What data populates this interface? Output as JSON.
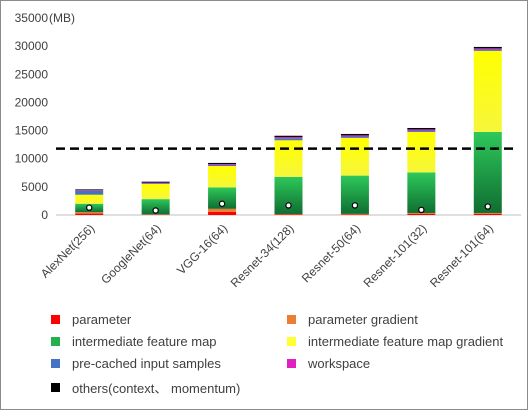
{
  "chart_data": {
    "type": "bar",
    "stacked": true,
    "unit_label": "(MB)",
    "ylim": [
      0,
      35000
    ],
    "yticks": [
      0,
      5000,
      10000,
      15000,
      20000,
      25000,
      30000,
      35000
    ],
    "ytick_labels": [
      "0",
      "5000",
      "10000",
      "15000",
      "20000",
      "25000",
      "30000",
      "35000"
    ],
    "categories": [
      "AlexNet(256)",
      "GoogleNet(64)",
      "VGG-16(64)",
      "Resnet-34(128)",
      "Resnet-50(64)",
      "Resnet-101(32)",
      "Resnet-101(64)"
    ],
    "series": [
      {
        "name": "parameter",
        "color": "#ff0000",
        "values": [
          250,
          60,
          550,
          90,
          100,
          180,
          180
        ]
      },
      {
        "name": "parameter gradient",
        "color": "#ed7d31",
        "values": [
          250,
          60,
          550,
          90,
          100,
          180,
          180
        ]
      },
      {
        "name": "intermediate feature map",
        "color": "#22b14c",
        "values": [
          1500,
          2700,
          3800,
          6600,
          6800,
          7200,
          14400
        ]
      },
      {
        "name": "intermediate feature map gradient",
        "color": "#ffff33",
        "values": [
          1600,
          2700,
          3800,
          6500,
          6700,
          7200,
          14400
        ]
      },
      {
        "name": "pre-cached input samples",
        "color": "#4472c4",
        "values": [
          700,
          150,
          200,
          350,
          250,
          250,
          250
        ]
      },
      {
        "name": "workspace",
        "color": "#e020c0",
        "values": [
          100,
          100,
          150,
          200,
          200,
          200,
          200
        ]
      },
      {
        "name": "others(context、 momentum)",
        "color": "#000000",
        "values": [
          150,
          150,
          200,
          250,
          250,
          250,
          250
        ]
      }
    ],
    "reference_line": 11800,
    "markers": [
      1300,
      800,
      2000,
      1700,
      1700,
      900,
      1500
    ]
  }
}
